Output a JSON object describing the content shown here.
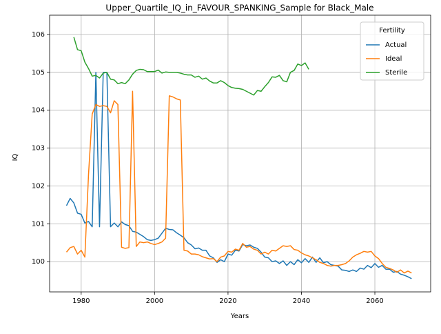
{
  "chart_data": {
    "type": "line",
    "title": "Upper_Quartile_IQ_in_FAVOUR_SPANKING_Sample for Black_Male",
    "x_label": "Years",
    "y_label": "IQ",
    "legend_title": "Fertility",
    "legend_position": "upper right",
    "grid": true,
    "xlim": [
      1971.4,
      2075.2
    ],
    "ylim": [
      99.2,
      106.51
    ],
    "xticks": [
      1980,
      2000,
      2020,
      2040,
      2060
    ],
    "yticks": [
      100,
      101,
      102,
      103,
      104,
      105,
      106
    ],
    "x": [
      1976,
      1977,
      1978,
      1979,
      1980,
      1981,
      1982,
      1983,
      1984,
      1985,
      1986,
      1987,
      1988,
      1989,
      1990,
      1991,
      1992,
      1993,
      1994,
      1995,
      1996,
      1997,
      1998,
      1999,
      2000,
      2001,
      2002,
      2003,
      2004,
      2005,
      2006,
      2007,
      2008,
      2009,
      2010,
      2011,
      2012,
      2013,
      2014,
      2015,
      2016,
      2017,
      2018,
      2019,
      2020,
      2021,
      2022,
      2023,
      2024,
      2025,
      2026,
      2027,
      2028,
      2029,
      2030,
      2031,
      2032,
      2033,
      2034,
      2035,
      2036,
      2037,
      2038,
      2039,
      2040,
      2041,
      2042,
      2043,
      2044,
      2045,
      2046,
      2047,
      2048,
      2049,
      2050,
      2051,
      2052,
      2053,
      2054,
      2055,
      2056,
      2057,
      2058,
      2059,
      2060,
      2061,
      2062,
      2063,
      2064,
      2065,
      2066,
      2067,
      2068,
      2069,
      2070
    ],
    "series": [
      {
        "name": "Actual",
        "color": "#1f77b4",
        "values": [
          101.48,
          101.67,
          101.55,
          101.28,
          101.25,
          101.02,
          101.06,
          100.92,
          105.0,
          100.92,
          105.0,
          105.0,
          100.92,
          101.02,
          100.92,
          101.05,
          100.98,
          100.95,
          100.8,
          100.78,
          100.72,
          100.66,
          100.58,
          100.56,
          100.58,
          100.62,
          100.75,
          100.88,
          100.85,
          100.84,
          100.76,
          100.7,
          100.63,
          100.5,
          100.44,
          100.34,
          100.36,
          100.3,
          100.3,
          100.15,
          100.1,
          99.98,
          100.05,
          100.0,
          100.2,
          100.17,
          100.3,
          100.28,
          100.45,
          100.42,
          100.44,
          100.38,
          100.35,
          100.25,
          100.12,
          100.1,
          100.0,
          100.02,
          99.95,
          100.02,
          99.9,
          100.0,
          99.92,
          100.05,
          99.97,
          100.08,
          99.98,
          100.12,
          99.98,
          100.1,
          99.97,
          100.0,
          99.92,
          99.9,
          99.88,
          99.78,
          99.77,
          99.74,
          99.78,
          99.74,
          99.83,
          99.8,
          99.9,
          99.84,
          99.95,
          99.85,
          99.9,
          99.8,
          99.8,
          99.72,
          99.74,
          99.67,
          99.64,
          99.6,
          99.55
        ]
      },
      {
        "name": "Ideal",
        "color": "#ff7f0e",
        "values": [
          100.25,
          100.37,
          100.4,
          100.2,
          100.3,
          100.12,
          102.3,
          103.9,
          104.15,
          104.1,
          104.12,
          104.1,
          103.93,
          104.25,
          104.15,
          100.38,
          100.35,
          100.37,
          104.5,
          100.4,
          100.52,
          100.5,
          100.52,
          100.48,
          100.45,
          100.48,
          100.52,
          100.62,
          104.38,
          104.35,
          104.3,
          104.27,
          100.3,
          100.28,
          100.2,
          100.2,
          100.18,
          100.13,
          100.1,
          100.07,
          100.08,
          100.0,
          100.12,
          100.15,
          100.27,
          100.25,
          100.33,
          100.3,
          100.48,
          100.38,
          100.4,
          100.33,
          100.3,
          100.2,
          100.25,
          100.2,
          100.3,
          100.28,
          100.35,
          100.42,
          100.4,
          100.42,
          100.32,
          100.3,
          100.23,
          100.18,
          100.15,
          100.1,
          100.05,
          99.98,
          99.95,
          99.9,
          99.88,
          99.9,
          99.9,
          99.92,
          99.95,
          100.02,
          100.12,
          100.18,
          100.22,
          100.27,
          100.25,
          100.27,
          100.15,
          100.08,
          99.95,
          99.85,
          99.82,
          99.78,
          99.72,
          99.78,
          99.7,
          99.75,
          99.7
        ]
      },
      {
        "name": "Sterile",
        "color": "#2ca02c",
        "values": [
          null,
          null,
          105.93,
          105.6,
          105.57,
          105.27,
          105.1,
          104.9,
          104.92,
          104.85,
          104.98,
          105.0,
          104.82,
          104.8,
          104.7,
          104.73,
          104.7,
          104.8,
          104.95,
          105.05,
          105.08,
          105.07,
          105.02,
          105.02,
          105.02,
          105.06,
          104.98,
          105.01,
          105.0,
          105.0,
          105.0,
          104.98,
          104.95,
          104.93,
          104.93,
          104.87,
          104.9,
          104.82,
          104.85,
          104.77,
          104.72,
          104.72,
          104.78,
          104.73,
          104.65,
          104.6,
          104.58,
          104.57,
          104.55,
          104.5,
          104.45,
          104.4,
          104.52,
          104.5,
          104.62,
          104.73,
          104.88,
          104.87,
          104.92,
          104.78,
          104.75,
          105.0,
          105.05,
          105.22,
          105.18,
          105.25,
          105.08,
          null,
          null,
          null,
          null,
          null,
          null,
          null,
          null,
          null,
          null,
          null,
          null,
          null,
          null,
          null,
          null,
          null,
          null,
          null,
          null,
          null,
          null,
          null,
          null,
          null,
          null,
          null,
          null
        ]
      }
    ]
  }
}
